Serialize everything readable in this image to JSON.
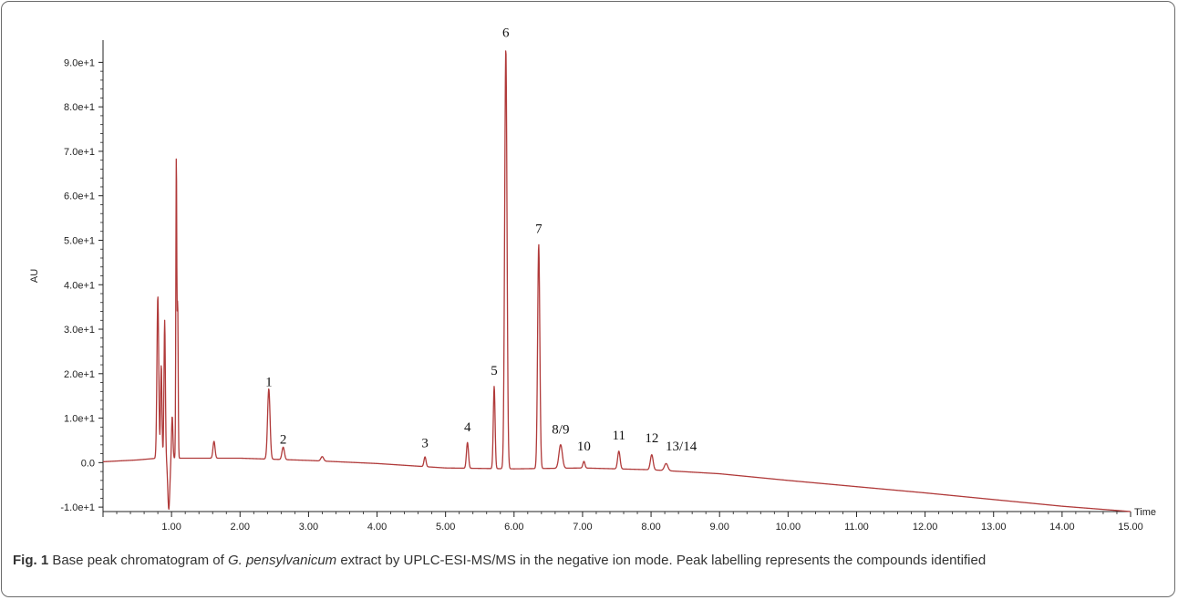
{
  "chart_data": {
    "type": "line",
    "xlabel": "Time",
    "ylabel": "AU",
    "xlim": [
      0,
      15
    ],
    "ylim": [
      -11,
      95
    ],
    "x_ticks": [
      1,
      2,
      3,
      4,
      5,
      6,
      7,
      8,
      9,
      10,
      11,
      12,
      13,
      14,
      15
    ],
    "x_tick_labels": [
      "1.00",
      "2.00",
      "3.00",
      "4.00",
      "5.00",
      "6.00",
      "7.00",
      "8.00",
      "9.00",
      "10.00",
      "11.00",
      "12.00",
      "13.00",
      "14.00",
      "15.00"
    ],
    "y_ticks": [
      -10,
      0,
      10,
      20,
      30,
      40,
      50,
      60,
      70,
      80,
      90
    ],
    "y_tick_labels": [
      "-1.0e+1",
      "0.0",
      "1.0e+1",
      "2.0e+1",
      "3.0e+1",
      "4.0e+1",
      "5.0e+1",
      "6.0e+1",
      "7.0e+1",
      "8.0e+1",
      "9.0e+1"
    ],
    "line_color": "#b03a3a",
    "baseline": [
      [
        0,
        0.2
      ],
      [
        0.5,
        0.6
      ],
      [
        0.8,
        1.0
      ],
      [
        1.1,
        1.0
      ],
      [
        2.0,
        1.0
      ],
      [
        3.0,
        0.5
      ],
      [
        4.0,
        -0.2
      ],
      [
        5.0,
        -1.2
      ],
      [
        6.0,
        -1.4
      ],
      [
        7.0,
        -1.2
      ],
      [
        8.0,
        -1.6
      ],
      [
        9.0,
        -2.5
      ],
      [
        10.0,
        -4.0
      ],
      [
        11.0,
        -5.4
      ],
      [
        12.0,
        -6.8
      ],
      [
        13.0,
        -8.3
      ],
      [
        14.0,
        -9.8
      ],
      [
        15.0,
        -11.0
      ]
    ],
    "peaks": [
      {
        "t": 0.8,
        "h": 36.5,
        "w": 0.013
      },
      {
        "t": 0.85,
        "h": 21,
        "w": 0.01
      },
      {
        "t": 0.9,
        "h": 31,
        "w": 0.01
      },
      {
        "t": 0.96,
        "h": -11.5,
        "w": 0.015
      },
      {
        "t": 1.01,
        "h": 9.5,
        "w": 0.01
      },
      {
        "t": 1.07,
        "h": 68,
        "w": 0.007
      },
      {
        "t": 1.09,
        "h": 34.5,
        "w": 0.007
      },
      {
        "t": 1.62,
        "h": 3.8,
        "w": 0.015
      },
      {
        "t": 2.42,
        "h": 15.8,
        "w": 0.018
      },
      {
        "t": 2.63,
        "h": 2.8,
        "w": 0.018
      },
      {
        "t": 3.2,
        "h": 1.0,
        "w": 0.02
      },
      {
        "t": 4.7,
        "h": 2.2,
        "w": 0.015
      },
      {
        "t": 5.32,
        "h": 5.8,
        "w": 0.015
      },
      {
        "t": 5.71,
        "h": 18.5,
        "w": 0.013
      },
      {
        "t": 5.88,
        "h": 94.5,
        "w": 0.017
      },
      {
        "t": 6.36,
        "h": 50.4,
        "w": 0.016
      },
      {
        "t": 6.68,
        "h": 5.3,
        "w": 0.025
      },
      {
        "t": 7.02,
        "h": 1.5,
        "w": 0.015
      },
      {
        "t": 7.53,
        "h": 4.0,
        "w": 0.018
      },
      {
        "t": 8.01,
        "h": 3.4,
        "w": 0.02
      },
      {
        "t": 8.22,
        "h": 1.6,
        "w": 0.025
      }
    ],
    "annotations": [
      {
        "text": "1",
        "t": 2.42,
        "y": 16
      },
      {
        "text": "2",
        "t": 2.63,
        "y": 3
      },
      {
        "text": "3",
        "t": 4.7,
        "y": 2.2
      },
      {
        "text": "4",
        "t": 5.32,
        "y": 5.8
      },
      {
        "text": "5",
        "t": 5.71,
        "y": 18.5
      },
      {
        "text": "6",
        "t": 5.88,
        "y": 94.5
      },
      {
        "text": "7",
        "t": 6.36,
        "y": 50.4
      },
      {
        "text": "8/9",
        "t": 6.68,
        "y": 5.3
      },
      {
        "text": "10",
        "t": 7.02,
        "y": 1.5
      },
      {
        "text": "11",
        "t": 7.53,
        "y": 4.0
      },
      {
        "text": "12",
        "t": 8.01,
        "y": 3.4
      },
      {
        "text": "13/14",
        "t": 8.44,
        "y": 1.5
      }
    ]
  },
  "caption": {
    "label": "Fig. 1",
    "text_before": " Base peak chromatogram of ",
    "species": "G. pensylvanicum",
    "text_after": " extract by UPLC-ESI-MS/MS in the negative ion mode. Peak labelling represents the compounds identified"
  }
}
